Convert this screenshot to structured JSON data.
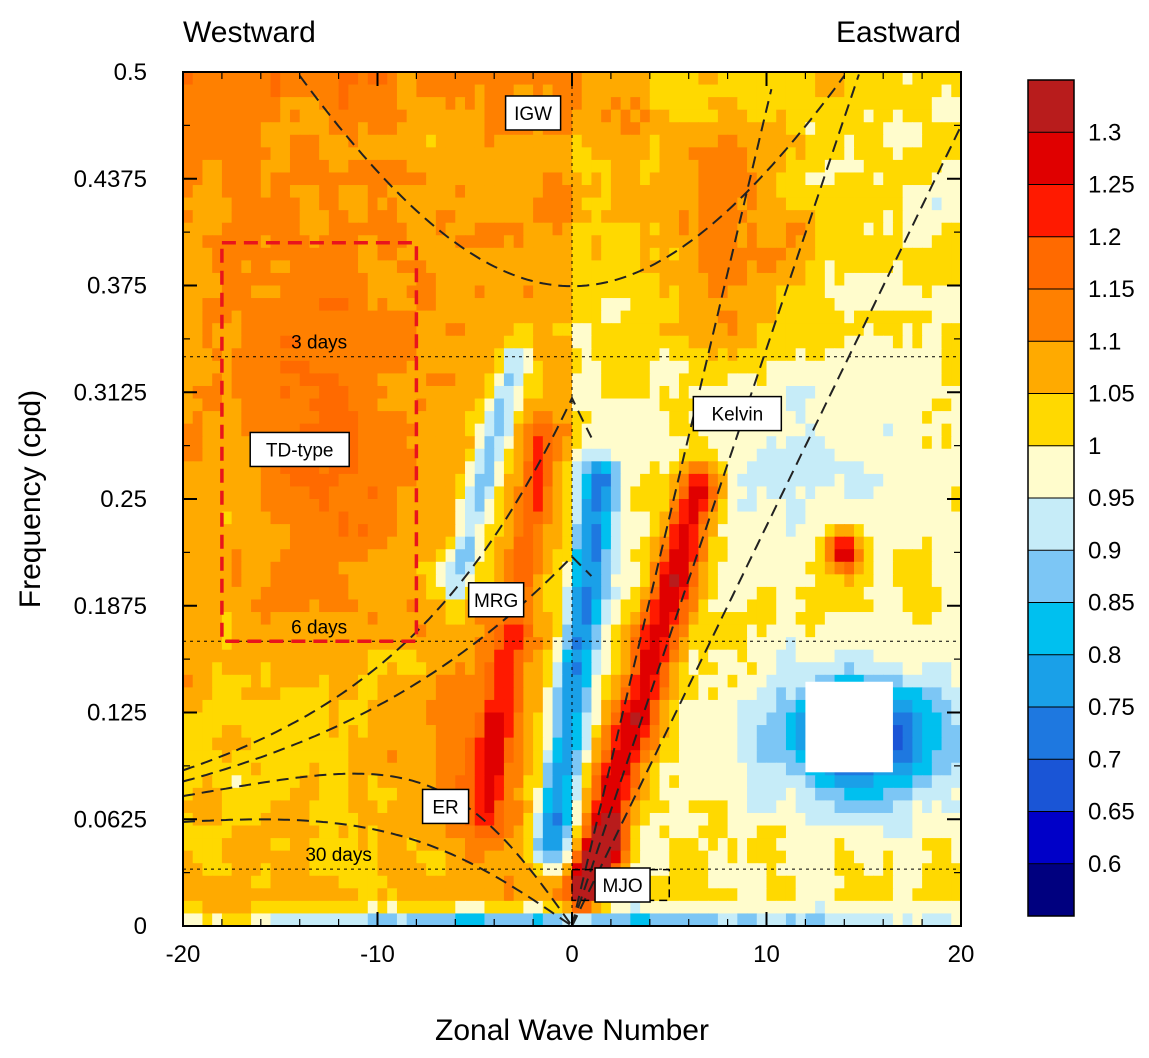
{
  "chart_data": {
    "type": "heatmap",
    "title": "",
    "direction_labels": {
      "left": "Westward",
      "right": "Eastward"
    },
    "xlabel": "Zonal Wave Number",
    "ylabel": "Frequency (cpd)",
    "xlim": [
      -20,
      20
    ],
    "ylim": [
      0,
      0.5
    ],
    "x_ticks": [
      -20,
      -10,
      0,
      10,
      20
    ],
    "x_tick_labels": [
      "-20",
      "-10",
      "0",
      "10",
      "20"
    ],
    "y_ticks": [
      0,
      0.0625,
      0.125,
      0.1875,
      0.25,
      0.3125,
      0.375,
      0.4375,
      0.5
    ],
    "y_tick_labels": [
      "0",
      "0.0625",
      "0.125",
      "0.1875",
      "0.25",
      "0.3125",
      "0.375",
      "0.4375",
      "0.5"
    ],
    "colorbar": {
      "levels": [
        0.6,
        0.65,
        0.7,
        0.75,
        0.8,
        0.85,
        0.9,
        0.95,
        1,
        1.05,
        1.1,
        1.15,
        1.2,
        1.25,
        1.3
      ],
      "labels": [
        "0.6",
        "0.65",
        "0.7",
        "0.75",
        "0.8",
        "0.85",
        "0.9",
        "0.95",
        "1",
        "1.05",
        "1.1",
        "1.15",
        "1.2",
        "1.25",
        "1.3"
      ],
      "colors": [
        "#00007f",
        "#0000c8",
        "#1a55d6",
        "#1e78e0",
        "#1aa0e8",
        "#00c0ef",
        "#7cc6f5",
        "#c6ecf8",
        "#fffccc",
        "#ffd900",
        "#ffaa00",
        "#ff8000",
        "#ff6a00",
        "#ff1a00",
        "#e00000",
        "#b81c1c"
      ]
    },
    "period_lines": [
      {
        "label": "3 days",
        "frequency": 0.3333,
        "label_x": -13
      },
      {
        "label": "6 days",
        "frequency": 0.1667,
        "label_x": -13
      },
      {
        "label": "30 days",
        "frequency": 0.0333,
        "label_x": -12
      }
    ],
    "wave_labels": [
      {
        "text": "IGW",
        "x": -2,
        "y": 0.476
      },
      {
        "text": "Kelvin",
        "x": 8.5,
        "y": 0.3
      },
      {
        "text": "TD-type",
        "x": -14,
        "y": 0.279
      },
      {
        "text": "MRG",
        "x": -3.9,
        "y": 0.191
      },
      {
        "text": "ER",
        "x": -6.5,
        "y": 0.07
      },
      {
        "text": "MJO",
        "x": 2.6,
        "y": 0.024
      }
    ],
    "td_box": {
      "x": [
        -18,
        -8
      ],
      "y": [
        0.1667,
        0.4
      ]
    },
    "mjo_box": {
      "x": [
        0,
        5
      ],
      "y": [
        0.015,
        0.033
      ]
    },
    "masked_region": {
      "x": [
        12,
        16.5
      ],
      "y": [
        0.09,
        0.143
      ]
    },
    "features": [
      {
        "kind": "ridge",
        "name": "kelvin-ridge",
        "x0": 1,
        "y0": 0.03,
        "x1": 6.5,
        "y1": 0.255,
        "width": 1.3,
        "value": 1.28
      },
      {
        "kind": "ridge",
        "name": "mrg-ridge",
        "x0": -4.5,
        "y0": 0.07,
        "x1": -1.5,
        "y1": 0.28,
        "width": 1.0,
        "value": 1.2
      },
      {
        "kind": "ridge",
        "name": "low-k-trough",
        "x0": -1,
        "y0": 0.05,
        "x1": 1.5,
        "y1": 0.26,
        "width": 1.1,
        "value": 0.74
      },
      {
        "kind": "ridge",
        "name": "westward-trough",
        "x0": -6,
        "y0": 0.2,
        "x1": -3,
        "y1": 0.33,
        "width": 0.9,
        "value": 0.88
      },
      {
        "kind": "ridge",
        "name": "mjo-peak",
        "x0": 0.5,
        "y0": 0.02,
        "x1": 2,
        "y1": 0.05,
        "width": 0.8,
        "value": 1.28
      },
      {
        "kind": "blob",
        "name": "td-region",
        "x": -13,
        "y": 0.3,
        "rx": 6,
        "ry": 0.13,
        "value": 1.15
      },
      {
        "kind": "blob",
        "name": "top-band",
        "x": -6,
        "y": 0.44,
        "rx": 12,
        "ry": 0.06,
        "value": 1.08
      },
      {
        "kind": "blob",
        "name": "kelvin-upper",
        "x": 8,
        "y": 0.4,
        "rx": 4,
        "ry": 0.08,
        "value": 1.12
      },
      {
        "kind": "blob",
        "name": "low-freq-wave",
        "x": 15,
        "y": 0.11,
        "rx": 5,
        "ry": 0.04,
        "value": 0.65
      },
      {
        "kind": "blob",
        "name": "isolated-peak",
        "x": 14,
        "y": 0.22,
        "rx": 1,
        "ry": 0.015,
        "value": 1.3
      },
      {
        "kind": "blob",
        "name": "mid-east-low",
        "x": 12,
        "y": 0.27,
        "rx": 6,
        "ry": 0.06,
        "value": 0.93
      },
      {
        "kind": "blob",
        "name": "er-region",
        "x": -5,
        "y": 0.1,
        "rx": 3,
        "ry": 0.06,
        "value": 1.15
      },
      {
        "kind": "blob",
        "name": "west-lowfreq",
        "x": -15,
        "y": 0.1,
        "rx": 4,
        "ry": 0.05,
        "value": 1.02
      },
      {
        "kind": "blob",
        "name": "zero-freq-band",
        "x": 0,
        "y": 0.005,
        "rx": 22,
        "ry": 0.006,
        "value": 0.84
      }
    ]
  }
}
